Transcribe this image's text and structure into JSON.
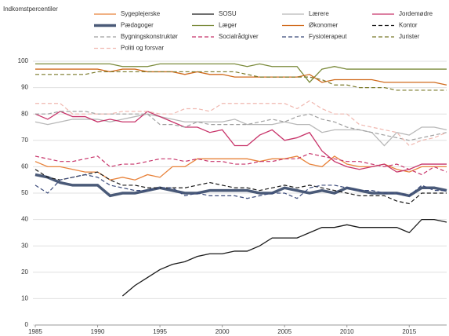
{
  "chart_data": {
    "type": "line",
    "y_label": "Indkomstpercentiler",
    "x": [
      1985,
      1986,
      1987,
      1988,
      1989,
      1990,
      1991,
      1992,
      1993,
      1994,
      1995,
      1996,
      1997,
      1998,
      1999,
      2000,
      2001,
      2002,
      2003,
      2004,
      2005,
      2006,
      2007,
      2008,
      2009,
      2010,
      2011,
      2012,
      2013,
      2014,
      2015,
      2016,
      2017,
      2018
    ],
    "xlim": [
      1985,
      2018
    ],
    "xticks": [
      1985,
      1990,
      1995,
      2000,
      2005,
      2010,
      2015
    ],
    "ylim": [
      0,
      100
    ],
    "yticks": [
      0,
      10,
      20,
      30,
      40,
      50,
      60,
      70,
      80,
      90,
      100
    ],
    "grid": true,
    "series": [
      {
        "name": "Sygeplejerske",
        "color": "#e8823a",
        "dashed": false,
        "linewidth": 1.3,
        "values": [
          62,
          60,
          60,
          59,
          58,
          58,
          55,
          56,
          55,
          57,
          56,
          60,
          60,
          63,
          63,
          63,
          63,
          63,
          62,
          63,
          63,
          64,
          61,
          60,
          64,
          61,
          60,
          60,
          61,
          59,
          58,
          60,
          60,
          60
        ]
      },
      {
        "name": "SOSU",
        "color": "#1a1a1a",
        "dashed": false,
        "linewidth": 1.3,
        "values": [
          null,
          null,
          null,
          null,
          null,
          null,
          null,
          11,
          15,
          18,
          21,
          23,
          24,
          26,
          27,
          27,
          28,
          28,
          30,
          33,
          33,
          33,
          35,
          37,
          37,
          38,
          37,
          37,
          37,
          37,
          35,
          40,
          40,
          39
        ]
      },
      {
        "name": "Lærere",
        "color": "#b8b8b8",
        "dashed": false,
        "linewidth": 1.3,
        "values": [
          77,
          76,
          77,
          78,
          78,
          78,
          77,
          78,
          79,
          80,
          79,
          78,
          77,
          77,
          77,
          77,
          78,
          76,
          76,
          76,
          77,
          76,
          76,
          73,
          74,
          74,
          74,
          73,
          68,
          73,
          72,
          75,
          75,
          74
        ]
      },
      {
        "name": "Jordemødre",
        "color": "#c8346a",
        "dashed": false,
        "linewidth": 1.3,
        "values": [
          80,
          78,
          81,
          79,
          79,
          77,
          78,
          77,
          77,
          81,
          79,
          77,
          75,
          75,
          73,
          74,
          68,
          68,
          72,
          74,
          70,
          71,
          73,
          66,
          62,
          60,
          59,
          60,
          61,
          58,
          59,
          61,
          61,
          61
        ]
      },
      {
        "name": "Pædagoger",
        "color": "#4a5a78",
        "dashed": false,
        "linewidth": 3.5,
        "values": [
          57,
          56,
          54,
          53,
          53,
          53,
          49,
          50,
          50,
          51,
          52,
          51,
          50,
          50,
          51,
          51,
          51,
          51,
          50,
          50,
          52,
          51,
          50,
          51,
          50,
          52,
          51,
          50,
          50,
          50,
          49,
          52,
          52,
          51
        ]
      },
      {
        "name": "Læger",
        "color": "#7a8a3a",
        "dashed": false,
        "linewidth": 1.3,
        "values": [
          99,
          99,
          99,
          99,
          99,
          99,
          99,
          98,
          98,
          98,
          99,
          99,
          99,
          99,
          99,
          99,
          99,
          98,
          99,
          98,
          98,
          98,
          92,
          97,
          98,
          97,
          97,
          97,
          97,
          97,
          97,
          97,
          97,
          97
        ]
      },
      {
        "name": "Økonomer",
        "color": "#d06a1c",
        "dashed": false,
        "linewidth": 1.3,
        "values": [
          97,
          97,
          97,
          97,
          97,
          97,
          96,
          97,
          97,
          96,
          96,
          96,
          95,
          96,
          95,
          95,
          94,
          94,
          94,
          94,
          94,
          94,
          95,
          92,
          93,
          93,
          93,
          93,
          92,
          92,
          92,
          92,
          92,
          91
        ]
      },
      {
        "name": "Kontor",
        "color": "#1a1a1a",
        "dashed": true,
        "linewidth": 1.2,
        "values": [
          59,
          56,
          55,
          56,
          57,
          58,
          55,
          53,
          53,
          52,
          52,
          52,
          52,
          53,
          54,
          53,
          52,
          52,
          51,
          52,
          53,
          52,
          53,
          52,
          51,
          50,
          49,
          49,
          49,
          47,
          46,
          50,
          50,
          50
        ]
      },
      {
        "name": "Bygningskonstruktør",
        "color": "#a0a0a0",
        "dashed": true,
        "linewidth": 1.2,
        "values": [
          80,
          80,
          81,
          81,
          81,
          80,
          80,
          80,
          80,
          80,
          76,
          76,
          75,
          77,
          76,
          76,
          76,
          76,
          77,
          78,
          77,
          79,
          80,
          78,
          77,
          75,
          74,
          73,
          72,
          71,
          70,
          71,
          72,
          73
        ]
      },
      {
        "name": "Socialrådgiver",
        "color": "#c8346a",
        "dashed": true,
        "linewidth": 1.2,
        "values": [
          64,
          63,
          62,
          62,
          63,
          64,
          60,
          61,
          61,
          62,
          63,
          63,
          62,
          63,
          62,
          62,
          61,
          61,
          62,
          62,
          63,
          63,
          65,
          64,
          63,
          62,
          62,
          61,
          60,
          61,
          59,
          57,
          60,
          58
        ]
      },
      {
        "name": "Fysioterapeut",
        "color": "#3a4a7a",
        "dashed": true,
        "linewidth": 1.2,
        "values": [
          53,
          50,
          55,
          56,
          57,
          56,
          53,
          52,
          51,
          51,
          52,
          52,
          49,
          50,
          49,
          49,
          49,
          48,
          49,
          50,
          50,
          48,
          52,
          53,
          53,
          52,
          51,
          51,
          50,
          50,
          49,
          53,
          51,
          51
        ]
      },
      {
        "name": "Jurister",
        "color": "#7a7a2a",
        "dashed": true,
        "linewidth": 1.2,
        "values": [
          95,
          95,
          95,
          95,
          95,
          96,
          96,
          96,
          96,
          96,
          96,
          96,
          96,
          96,
          96,
          96,
          96,
          95,
          94,
          94,
          94,
          94,
          94,
          93,
          91,
          91,
          90,
          90,
          90,
          89,
          89,
          89,
          89,
          89
        ]
      },
      {
        "name": "Politi og forsvar",
        "color": "#f0b8b0",
        "dashed": true,
        "linewidth": 1.2,
        "values": [
          84,
          84,
          84,
          80,
          80,
          80,
          80,
          81,
          81,
          81,
          80,
          80,
          82,
          82,
          81,
          84,
          84,
          84,
          84,
          84,
          84,
          82,
          85,
          82,
          80,
          80,
          76,
          75,
          74,
          73,
          68,
          70,
          71,
          73
        ]
      }
    ]
  }
}
